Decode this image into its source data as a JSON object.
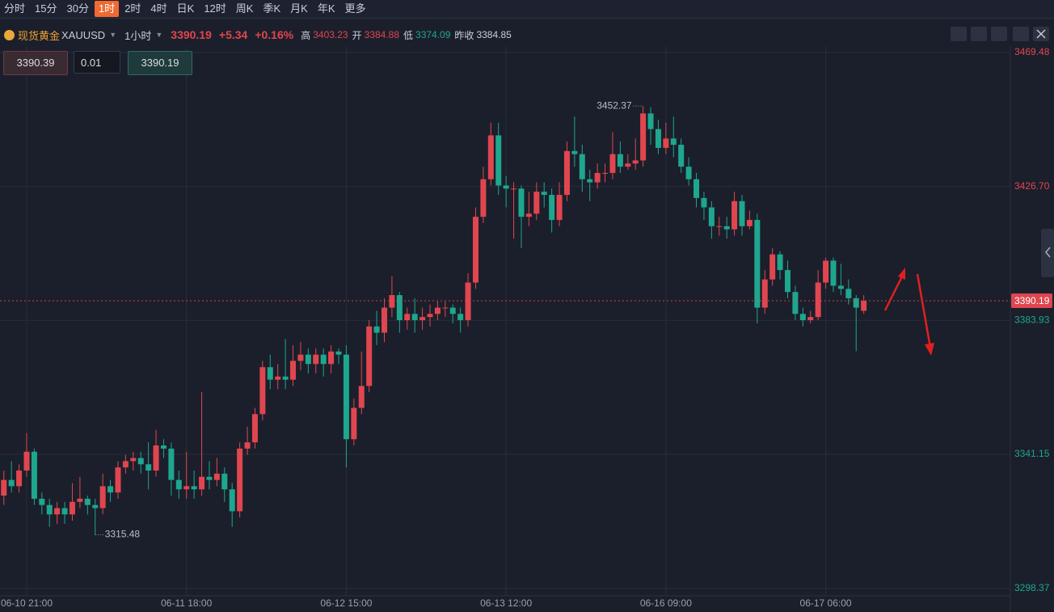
{
  "ui": {
    "periods": [
      "分时",
      "15分",
      "30分",
      "1时",
      "2时",
      "4时",
      "日K",
      "12时",
      "周K",
      "季K",
      "月K",
      "年K",
      "更多"
    ],
    "active_period": 3,
    "symbol_name": "现货黄金",
    "symbol_code": "XAUUSD",
    "interval": "1小时",
    "price": "3390.19",
    "change": "+5.34",
    "change_pct": "+0.16%",
    "high_label": "高",
    "high": "3403.23",
    "open_label": "开",
    "open": "3384.88",
    "low_label": "低",
    "low": "3374.09",
    "prev_label": "昨收",
    "prev": "3384.85",
    "sell_price": "3390.39",
    "lot": "0.01",
    "buy_price": "3390.19"
  },
  "chart_data": {
    "type": "candlestick",
    "categories": [
      null,
      null,
      null,
      "06-10 21:00",
      null,
      null,
      null,
      null,
      null,
      null,
      null,
      null,
      null,
      null,
      null,
      null,
      null,
      null,
      null,
      null,
      null,
      null,
      null,
      null,
      "06-11 18:00",
      null,
      null,
      null,
      null,
      null,
      null,
      null,
      null,
      null,
      null,
      null,
      null,
      null,
      null,
      null,
      null,
      null,
      null,
      null,
      null,
      "06-12 15:00",
      null,
      null,
      null,
      null,
      null,
      null,
      null,
      null,
      null,
      null,
      null,
      null,
      null,
      null,
      null,
      null,
      null,
      null,
      null,
      null,
      "06-13 12:00",
      null,
      null,
      null,
      null,
      null,
      null,
      null,
      null,
      null,
      null,
      null,
      null,
      null,
      null,
      null,
      null,
      null,
      null,
      null,
      null,
      "06-16 09:00",
      null,
      null,
      null,
      null,
      null,
      null,
      null,
      null,
      null,
      null,
      null,
      null,
      null,
      null,
      null,
      null,
      null,
      null,
      null,
      null,
      "06-17 06:00",
      null,
      null,
      null,
      null,
      null
    ],
    "open": [
      3328,
      3333,
      3331,
      3336,
      3342,
      3327,
      3325,
      3322,
      3324,
      3322,
      3326,
      3327,
      3325,
      3324,
      3331,
      3329,
      3337,
      3339,
      3340,
      3338,
      3336,
      3344,
      3343,
      3333,
      3330,
      3331,
      3330,
      3334,
      3333,
      3335,
      3330,
      3323,
      3343,
      3345,
      3354,
      3369,
      3365,
      3366,
      3365,
      3371,
      3373,
      3370,
      3373,
      3370,
      3374,
      3373,
      3346,
      3356,
      3363,
      3382,
      3380,
      3388,
      3392,
      3384,
      3386,
      3384,
      3385,
      3386,
      3388,
      3388,
      3386,
      3384,
      3396,
      3417,
      3429,
      3443,
      3427,
      3426,
      3426,
      3417,
      3418,
      3425,
      3424,
      3416,
      3424,
      3438,
      3437,
      3429,
      3428,
      3431,
      3431,
      3437,
      3433,
      3434,
      3435,
      3450,
      3445,
      3439,
      3442,
      3440,
      3433,
      3429,
      3423,
      3420,
      3414,
      3414,
      3413,
      3422,
      3414,
      3416,
      3388,
      3397,
      3405,
      3400,
      3393,
      3386,
      3384,
      3385,
      3396,
      3403,
      3395,
      3394,
      3391,
      3387
    ],
    "high": [
      3336,
      3339,
      3338,
      3348,
      3343,
      3329,
      3327,
      3326,
      3326,
      3332,
      3334,
      3328,
      3327,
      3335,
      3333,
      3339,
      3341,
      3342,
      3342,
      3345,
      3349,
      3346,
      3345,
      3336,
      3342,
      3336,
      3361,
      3339,
      3340,
      3337,
      3332,
      3345,
      3350,
      3356,
      3371,
      3373,
      3370,
      3378,
      3376,
      3377,
      3375,
      3375,
      3375,
      3376,
      3375,
      3376,
      3359,
      3374,
      3384,
      3387,
      3391,
      3398,
      3393,
      3388,
      3391,
      3388,
      3389,
      3390,
      3390,
      3389,
      3388,
      3399,
      3420,
      3433,
      3447,
      3447,
      3430,
      3428,
      3427,
      3425,
      3428,
      3428,
      3426,
      3428,
      3441,
      3449,
      3440,
      3432,
      3434,
      3434,
      3444,
      3441,
      3437,
      3442,
      3452.37,
      3452,
      3448,
      3447,
      3449,
      3442,
      3436,
      3431,
      3425,
      3422,
      3417,
      3417,
      3425,
      3424,
      3419,
      3418,
      3400,
      3407,
      3406,
      3403,
      3395,
      3388,
      3387,
      3400,
      3404,
      3404,
      3402,
      3397,
      3392,
      3392
    ],
    "low": [
      3325,
      3329,
      3329,
      3334,
      3325,
      3322,
      3318,
      3319,
      3319,
      3320,
      3324,
      3322,
      3315.48,
      3322,
      3326,
      3327,
      3335,
      3336,
      3335,
      3330,
      3334,
      3340,
      3328,
      3327,
      3327,
      3327,
      3328,
      3330,
      3331,
      3326,
      3318,
      3321,
      3341,
      3343,
      3352,
      3362,
      3362,
      3362,
      3363,
      3368,
      3367,
      3367,
      3366,
      3367,
      3370,
      3337,
      3344,
      3354,
      3361,
      3376,
      3377,
      3385,
      3380,
      3381,
      3380,
      3381,
      3382,
      3384,
      3385,
      3383,
      3380,
      3382,
      3394,
      3415,
      3427,
      3424,
      3420,
      3410,
      3407,
      3414,
      3416,
      3420,
      3412,
      3414,
      3422,
      3433,
      3425,
      3422,
      3426,
      3428,
      3429,
      3431,
      3432,
      3432,
      3433,
      3440,
      3437,
      3437,
      3436,
      3431,
      3427,
      3420,
      3416,
      3410,
      3411,
      3410,
      3411,
      3411,
      3413,
      3383,
      3386,
      3395,
      3397,
      3391,
      3384,
      3382,
      3383,
      3384,
      3394,
      3393,
      3392,
      3389,
      3374.09,
      3386
    ],
    "close": [
      3333,
      3331,
      3336,
      3342,
      3327,
      3325,
      3322,
      3324,
      3322,
      3326,
      3327,
      3325,
      3324,
      3331,
      3329,
      3337,
      3339,
      3340,
      3338,
      3336,
      3344,
      3343,
      3333,
      3330,
      3331,
      3330,
      3334,
      3333,
      3335,
      3330,
      3323,
      3343,
      3345,
      3354,
      3369,
      3365,
      3366,
      3365,
      3371,
      3373,
      3370,
      3373,
      3370,
      3374,
      3373,
      3346,
      3356,
      3363,
      3382,
      3380,
      3388,
      3392,
      3384,
      3386,
      3384,
      3385,
      3386,
      3388,
      3388,
      3386,
      3384,
      3396,
      3417,
      3429,
      3443,
      3427,
      3426,
      3426,
      3417,
      3418,
      3425,
      3424,
      3416,
      3424,
      3438,
      3437,
      3429,
      3428,
      3431,
      3431,
      3437,
      3433,
      3434,
      3435,
      3450,
      3445,
      3439,
      3442,
      3440,
      3433,
      3429,
      3423,
      3420,
      3414,
      3414,
      3413,
      3422,
      3414,
      3416,
      3388,
      3397,
      3405,
      3400,
      3393,
      3386,
      3384,
      3385,
      3396,
      3403,
      3395,
      3394,
      3391,
      3388,
      3390.19
    ],
    "up_color": "#e0464f",
    "down_color": "#1fa68f",
    "ylim": [
      3296.0,
      3471.5
    ],
    "yticks": [
      3469.48,
      {
        "value": 3426.7,
        "label": "3426.70"
      },
      3383.93,
      3341.15,
      3298.37
    ],
    "grid": true
  }
}
